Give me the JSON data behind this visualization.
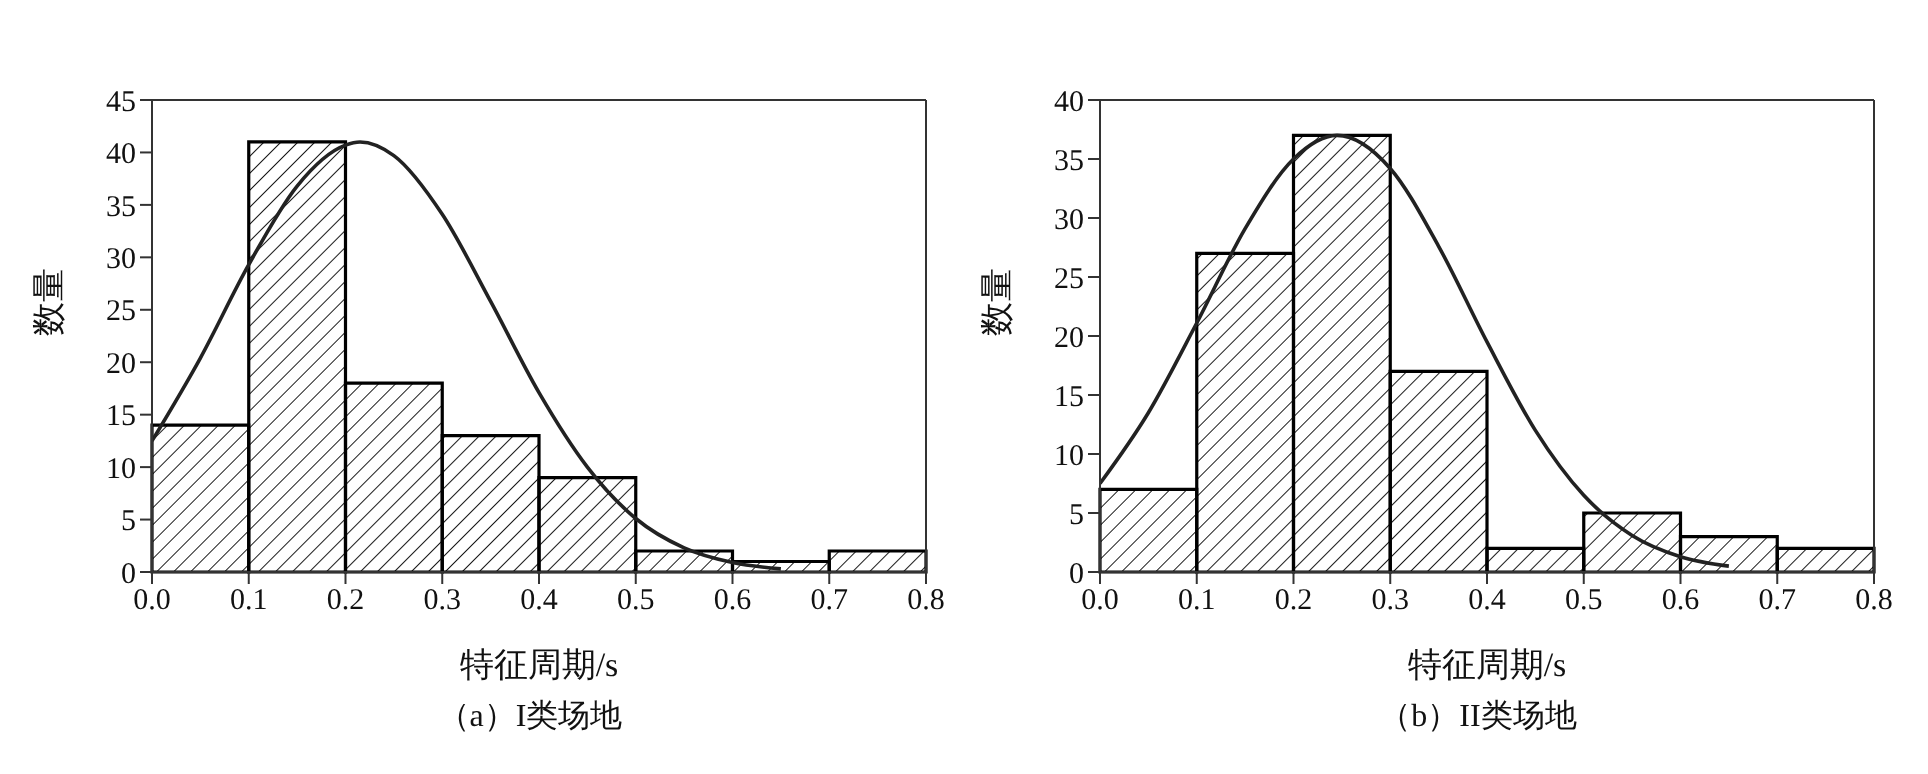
{
  "chart_data": [
    {
      "type": "histogram",
      "title": "（a）I类场地",
      "xlabel": "特征周期/s",
      "ylabel": "数量",
      "bins": [
        0,
        0.1,
        0.2,
        0.3,
        0.4,
        0.5,
        0.6,
        0.7,
        0.8
      ],
      "values": [
        14,
        41,
        18,
        13,
        9,
        2,
        1,
        2
      ],
      "color": "#000000",
      "xlim": [
        0,
        0.8
      ],
      "xticks": [
        {
          "value": 0,
          "label": "0.0"
        },
        0.1,
        0.2,
        0.3,
        0.4,
        0.5,
        0.6,
        0.7,
        0.8
      ],
      "ylim": [
        0,
        45
      ],
      "yticks": [
        0,
        5,
        10,
        15,
        20,
        25,
        30,
        35,
        40,
        45
      ],
      "series": [
        {
          "type": "line",
          "color": "#222222",
          "x": [
            0,
            0.05,
            0.1,
            0.15,
            0.2,
            0.215,
            0.25,
            0.3,
            0.35,
            0.4,
            0.45,
            0.5,
            0.55,
            0.6,
            0.65
          ],
          "values": [
            12.5,
            20.4,
            29.3,
            36.8,
            40.7,
            41,
            39.7,
            34.1,
            25.8,
            17.1,
            10,
            5.1,
            2.3,
            0.9,
            0.3
          ]
        }
      ]
    },
    {
      "type": "histogram",
      "title": "（b）II类场地",
      "xlabel": "特征周期/s",
      "ylabel": "数量",
      "bins": [
        0,
        0.1,
        0.2,
        0.3,
        0.4,
        0.5,
        0.6,
        0.7,
        0.8
      ],
      "values": [
        7,
        27,
        37,
        17,
        2,
        5,
        3,
        2
      ],
      "color": "#000000",
      "xlim": [
        0,
        0.8
      ],
      "xticks": [
        {
          "value": 0,
          "label": "0.0"
        },
        0.1,
        0.2,
        0.3,
        0.4,
        0.5,
        0.6,
        0.7,
        0.8
      ],
      "ylim": [
        0,
        40
      ],
      "yticks": [
        0,
        5,
        10,
        15,
        20,
        25,
        30,
        35,
        40
      ],
      "series": [
        {
          "type": "line",
          "color": "#222222",
          "x": [
            0,
            0.05,
            0.1,
            0.15,
            0.2,
            0.245,
            0.3,
            0.35,
            0.4,
            0.45,
            0.5,
            0.55,
            0.6,
            0.65
          ],
          "values": [
            7.5,
            13.5,
            21.1,
            29.1,
            35,
            37,
            34.2,
            27.6,
            19.5,
            12,
            6.5,
            3.1,
            1.3,
            0.5
          ]
        }
      ]
    }
  ]
}
